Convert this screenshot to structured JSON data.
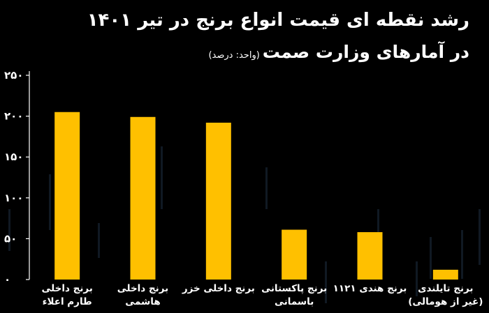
{
  "title": {
    "line1": "رشد نقطه ای قیمت انواع برنج در تیر ۱۴۰۱",
    "line2": "در آمارهای وزارت صمت",
    "unit": "(واحد: درصد)"
  },
  "chart_data": {
    "type": "bar",
    "categories": [
      [
        "برنج داخلی",
        "طارم اعلاء"
      ],
      [
        "برنج داخلی",
        "هاشمی"
      ],
      [
        "برنج داخلی خزر"
      ],
      [
        "برنج پاکستانی",
        "باسمانی"
      ],
      [
        "برنج هندی ۱۱۲۱"
      ],
      [
        "برنج تایلندی",
        "(غیر از هومالی)"
      ]
    ],
    "values": [
      205,
      199,
      192,
      61,
      58,
      12
    ],
    "yticks": [
      0,
      50,
      100,
      150,
      200,
      250
    ],
    "ytick_labels": [
      "۰",
      "۵۰",
      "۱۰۰",
      "۱۵۰",
      "۲۰۰",
      "۲۵۰"
    ],
    "ylim": [
      0,
      250
    ],
    "bar_color": "#FFC000",
    "background": "#000000",
    "axis_color": "#ffffff",
    "grid": false
  }
}
